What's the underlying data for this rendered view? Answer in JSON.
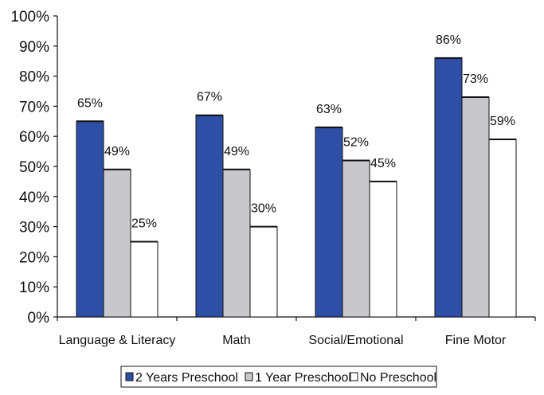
{
  "chart_data": {
    "type": "bar",
    "categories": [
      "Language & Literacy",
      "Math",
      "Social/Emotional",
      "Fine Motor"
    ],
    "series": [
      {
        "name": "2 Years Preschool",
        "values": [
          65,
          67,
          63,
          86
        ],
        "labels": [
          "65%",
          "67%",
          "63%",
          "86%"
        ],
        "color": "#2f4fa6"
      },
      {
        "name": "1 Year Preschool",
        "values": [
          49,
          49,
          52,
          73
        ],
        "labels": [
          "49%",
          "49%",
          "52%",
          "73%"
        ],
        "color": "#c8c8cc"
      },
      {
        "name": "No Preschool",
        "values": [
          25,
          30,
          45,
          59
        ],
        "labels": [
          "25%",
          "30%",
          "45%",
          "59%"
        ],
        "color": "#ffffff"
      }
    ],
    "y_ticks": [
      "0%",
      "10%",
      "20%",
      "30%",
      "40%",
      "50%",
      "60%",
      "70%",
      "80%",
      "90%",
      "100%"
    ],
    "ylim": [
      0,
      100
    ],
    "grid": false,
    "legend_position": "bottom"
  }
}
